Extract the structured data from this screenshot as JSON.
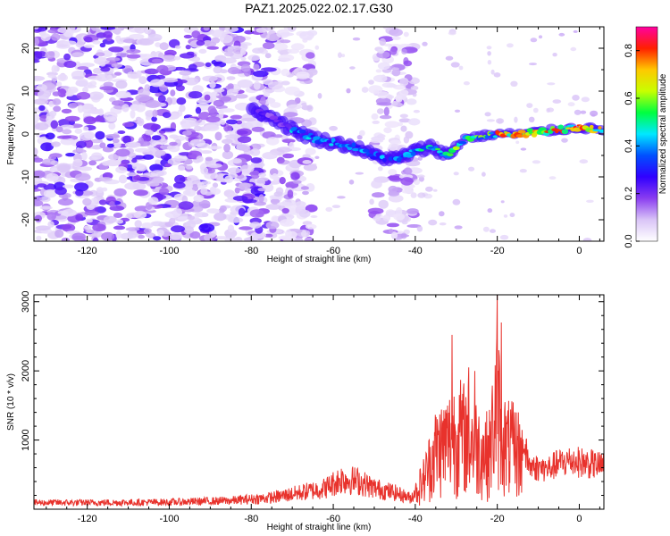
{
  "title": "PAZ1.2025.022.02.17.G30",
  "chart_data": [
    {
      "type": "heatmap",
      "xlabel": "Height of straight line (km)",
      "ylabel": "Frequency (Hz)",
      "xlim": [
        -133,
        6
      ],
      "ylim": [
        -25,
        25
      ],
      "xticks": [
        -120,
        -100,
        -80,
        -60,
        -40,
        -20,
        0
      ],
      "yticks": [
        -20,
        -10,
        0,
        10,
        20
      ],
      "colorbar": {
        "label": "Normalized spectral amplitude",
        "range": [
          0,
          0.9
        ],
        "ticks": [
          0.0,
          0.2,
          0.4,
          0.6,
          0.8
        ],
        "colormap": [
          "#ffffff",
          "#d9c4f7",
          "#8a3df0",
          "#3000ff",
          "#0050ff",
          "#00e8ff",
          "#00ff40",
          "#c8ff00",
          "#ffc800",
          "#ff2000",
          "#ff00a0"
        ]
      },
      "signal_track": [
        {
          "x": -80,
          "y": 6
        },
        {
          "x": -75,
          "y": 4
        },
        {
          "x": -70,
          "y": 1
        },
        {
          "x": -65,
          "y": -1
        },
        {
          "x": -60,
          "y": -2
        },
        {
          "x": -55,
          "y": -3
        },
        {
          "x": -50,
          "y": -5
        },
        {
          "x": -45,
          "y": -6
        },
        {
          "x": -40,
          "y": -4
        },
        {
          "x": -36,
          "y": -3
        },
        {
          "x": -32,
          "y": -5
        },
        {
          "x": -28,
          "y": -1
        },
        {
          "x": -24,
          "y": -0.5
        },
        {
          "x": -20,
          "y": 0
        },
        {
          "x": -15,
          "y": 0
        },
        {
          "x": -10,
          "y": 0.5
        },
        {
          "x": -5,
          "y": 1
        },
        {
          "x": 0,
          "y": 1.5
        },
        {
          "x": 5,
          "y": 1
        }
      ]
    },
    {
      "type": "line",
      "xlabel": "Height of straight line (km)",
      "ylabel": "SNR (10 * v/v)",
      "xlim": [
        -133,
        6
      ],
      "ylim": [
        0,
        3100
      ],
      "xticks": [
        -120,
        -100,
        -80,
        -60,
        -40,
        -20,
        0
      ],
      "yticks": [
        1000,
        2000,
        3000
      ],
      "color": "#e8322c",
      "envelope": [
        {
          "x": -133,
          "y": 130
        },
        {
          "x": -120,
          "y": 130
        },
        {
          "x": -100,
          "y": 140
        },
        {
          "x": -85,
          "y": 170
        },
        {
          "x": -75,
          "y": 230
        },
        {
          "x": -68,
          "y": 330
        },
        {
          "x": -62,
          "y": 420
        },
        {
          "x": -58,
          "y": 600
        },
        {
          "x": -54,
          "y": 560
        },
        {
          "x": -50,
          "y": 420
        },
        {
          "x": -45,
          "y": 330
        },
        {
          "x": -41,
          "y": 220
        },
        {
          "x": -38,
          "y": 700
        },
        {
          "x": -35,
          "y": 1400
        },
        {
          "x": -32,
          "y": 1600
        },
        {
          "x": -30,
          "y": 1800
        },
        {
          "x": -27,
          "y": 1700
        },
        {
          "x": -24,
          "y": 1400
        },
        {
          "x": -22,
          "y": 1300
        },
        {
          "x": -20,
          "y": 2600
        },
        {
          "x": -18,
          "y": 1500
        },
        {
          "x": -15,
          "y": 1400
        },
        {
          "x": -12,
          "y": 750
        },
        {
          "x": -8,
          "y": 700
        },
        {
          "x": -5,
          "y": 800
        },
        {
          "x": -2,
          "y": 850
        },
        {
          "x": 2,
          "y": 800
        },
        {
          "x": 6,
          "y": 750
        }
      ],
      "peaks": [
        {
          "x": -31,
          "y": 2520
        },
        {
          "x": -27,
          "y": 2050
        },
        {
          "x": -25.5,
          "y": 2000
        },
        {
          "x": -20,
          "y": 3100
        },
        {
          "x": -19,
          "y": 2700
        }
      ]
    }
  ]
}
